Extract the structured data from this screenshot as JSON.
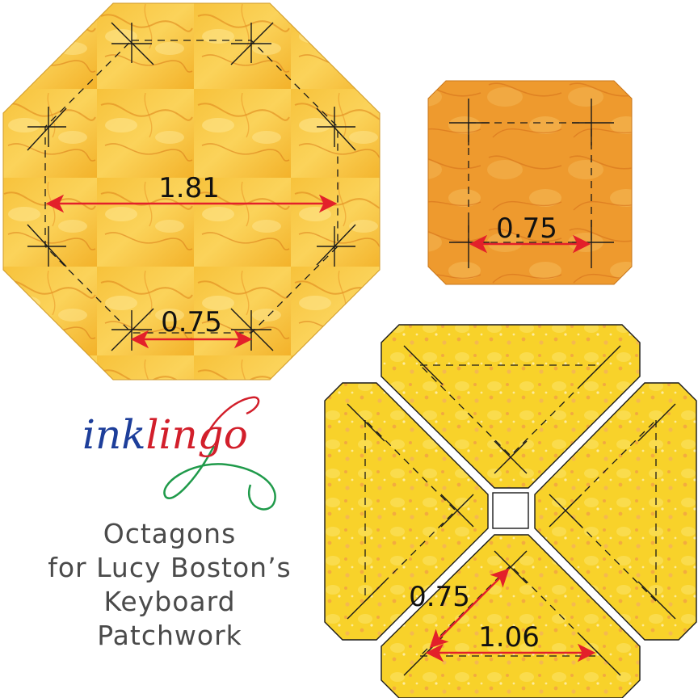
{
  "logo": {
    "part1": "ink",
    "part2": "lingo",
    "colors": {
      "ink": "#1d3e9a",
      "lingo": "#d21f2b",
      "swirl": "#1f9a4a"
    }
  },
  "title": {
    "line1": "Octagons",
    "line2": "for Lucy Boston’s",
    "line3": "Keyboard",
    "line4": "Patchwork"
  },
  "shapes": {
    "large_octagon": {
      "width_label": "1.81",
      "side_label": "0.75"
    },
    "small_square": {
      "side_label": "0.75"
    },
    "triangle_block": {
      "short_label": "0.75",
      "long_label": "1.06"
    }
  },
  "colors": {
    "arrow": "#e3202a",
    "fabric_gold": "#f5b82e",
    "fabric_orange": "#ee9a2e",
    "fabric_yellow": "#f8d42a"
  }
}
